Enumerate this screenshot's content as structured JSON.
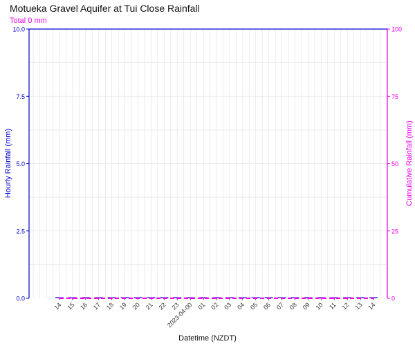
{
  "chart_data": {
    "type": "bar",
    "title": "Motueka Gravel Aquifer at Tui Close Rainfall",
    "subtitle": "Total 0 mm",
    "xlabel": "Datetime (NZDT)",
    "ylabel": "Hourly Rainfall (mm)",
    "y2label": "Cumulative Rainfall (mm)",
    "ylim": [
      0,
      10
    ],
    "y2lim": [
      0,
      100
    ],
    "yticks": [
      "0.0",
      "2.5",
      "5.0",
      "7.5",
      "10.0"
    ],
    "y2ticks": [
      "0",
      "25",
      "50",
      "75",
      "100"
    ],
    "x_tick_labels": [
      "14",
      "15",
      "16",
      "17",
      "18",
      "19",
      "20",
      "21",
      "22",
      "23",
      "2023-04-00",
      "01",
      "02",
      "03",
      "04",
      "05",
      "06",
      "07",
      "08",
      "09",
      "10",
      "11",
      "12",
      "13",
      "14"
    ],
    "categories": [
      "14",
      "15",
      "16",
      "17",
      "18",
      "19",
      "20",
      "21",
      "22",
      "23",
      "2023-04-00",
      "01",
      "02",
      "03",
      "04",
      "05",
      "06",
      "07",
      "08",
      "09",
      "10",
      "11",
      "12",
      "13",
      "14"
    ],
    "series": [
      {
        "name": "Hourly Rainfall (mm)",
        "values": [
          0,
          0,
          0,
          0,
          0,
          0,
          0,
          0,
          0,
          0,
          0,
          0,
          0,
          0,
          0,
          0,
          0,
          0,
          0,
          0,
          0,
          0,
          0,
          0,
          0
        ]
      },
      {
        "name": "Cumulative Rainfall (mm)",
        "values": [
          0,
          0,
          0,
          0,
          0,
          0,
          0,
          0,
          0,
          0,
          0,
          0,
          0,
          0,
          0,
          0,
          0,
          0,
          0,
          0,
          0,
          0,
          0,
          0,
          0
        ]
      }
    ],
    "grid": true,
    "colors": {
      "hourly": "#0000cc",
      "cumulative": "#ee00ee",
      "grid": "#e6e6e6",
      "text": "#333333"
    }
  }
}
